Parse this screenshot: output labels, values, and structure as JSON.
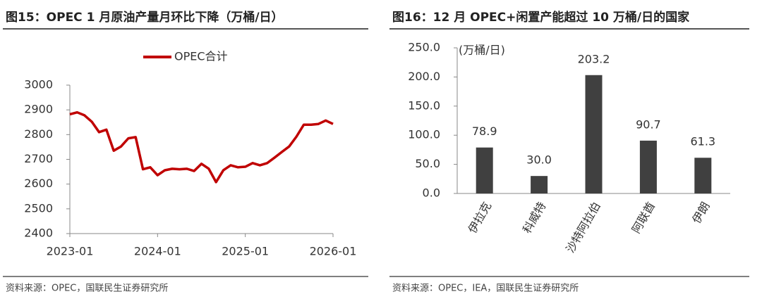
{
  "chart_data": [
    {
      "type": "line",
      "title": "图15：OPEC 1 月原油产量月环比下降（万桶/日）",
      "source": "资料来源：OPEC，国联民生证券研究所",
      "x": [
        "2023-01",
        "2023-02",
        "2023-03",
        "2023-04",
        "2023-05",
        "2023-06",
        "2023-07",
        "2023-08",
        "2023-09",
        "2023-10",
        "2023-11",
        "2023-12",
        "2024-01",
        "2024-02",
        "2024-03",
        "2024-04",
        "2024-05",
        "2024-06",
        "2024-07",
        "2024-08",
        "2024-09",
        "2024-10",
        "2024-11",
        "2024-12",
        "2025-01",
        "2025-02",
        "2025-03",
        "2025-04",
        "2025-05",
        "2025-06",
        "2025-07",
        "2025-08",
        "2025-09",
        "2025-10",
        "2025-11",
        "2025-12",
        "2026-01"
      ],
      "series": [
        {
          "name": "OPEC合计",
          "color": "#c00000",
          "values": [
            2882,
            2890,
            2878,
            2852,
            2810,
            2820,
            2735,
            2752,
            2785,
            2790,
            2660,
            2668,
            2636,
            2656,
            2662,
            2660,
            2662,
            2653,
            2682,
            2662,
            2608,
            2656,
            2676,
            2668,
            2670,
            2685,
            2676,
            2685,
            2707,
            2730,
            2752,
            2792,
            2840,
            2840,
            2843,
            2857,
            2843
          ]
        }
      ],
      "xticks": [
        "2023-01",
        "2024-01",
        "2025-01",
        "2026-01"
      ],
      "ylim": [
        2400,
        3000
      ],
      "yticks": [
        2400,
        2500,
        2600,
        2700,
        2800,
        2900,
        3000
      ],
      "legend": "top"
    },
    {
      "type": "bar",
      "title": "图16：12 月 OPEC+闲置产能超过 10 万桶/日的国家",
      "source": "资料来源：OPEC，IEA，国联民生证券研究所",
      "y_label": "(万桶/日)",
      "categories": [
        "伊拉克",
        "科威特",
        "沙特阿拉伯",
        "阿联酋",
        "伊朗"
      ],
      "values": [
        78.9,
        30,
        203.2,
        90.7,
        61.3
      ],
      "value_labels": [
        "78.9",
        "30.0",
        "203.2",
        "90.7",
        "61.3"
      ],
      "color": "#404040",
      "ylim": [
        0,
        250
      ],
      "yticks": [
        {
          "value": 0,
          "label": "0.0"
        },
        {
          "value": 50,
          "label": "50.0"
        },
        {
          "value": 100,
          "label": "100.0"
        },
        {
          "value": 150,
          "label": "150.0"
        },
        {
          "value": 200,
          "label": "200.0"
        },
        {
          "value": 250,
          "label": "250.0"
        }
      ]
    }
  ]
}
